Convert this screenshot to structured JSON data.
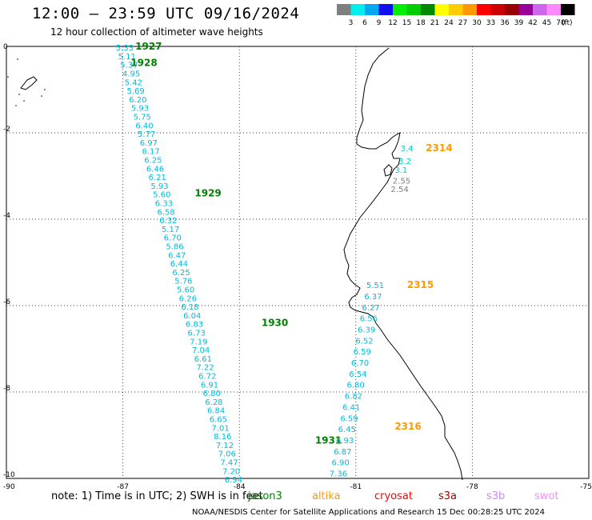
{
  "header": {
    "title": "12:00 — 23:59 UTC 09/16/2024",
    "subtitle": "12 hour collection of altimeter wave heights"
  },
  "legend": {
    "unit": "(ft)",
    "entries": [
      {
        "label": "3",
        "color": "#7f7f7f"
      },
      {
        "label": "6",
        "color": "#00eeee"
      },
      {
        "label": "9",
        "color": "#00a8f0"
      },
      {
        "label": "12",
        "color": "#1010ee"
      },
      {
        "label": "15",
        "color": "#00ee00"
      },
      {
        "label": "18",
        "color": "#00cc00"
      },
      {
        "label": "21",
        "color": "#008800"
      },
      {
        "label": "24",
        "color": "#ffff00"
      },
      {
        "label": "27",
        "color": "#ffcc00"
      },
      {
        "label": "30",
        "color": "#ff9900"
      },
      {
        "label": "33",
        "color": "#ff0000"
      },
      {
        "label": "36",
        "color": "#cc0000"
      },
      {
        "label": "39",
        "color": "#990000"
      },
      {
        "label": "42",
        "color": "#990099"
      },
      {
        "label": "45",
        "color": "#cc66ee"
      },
      {
        "label": "70",
        "color": "#ff88ff"
      },
      {
        "label": "",
        "color": "#000000"
      }
    ]
  },
  "map": {
    "lon_ticks": [
      -90,
      -87,
      -84,
      -81,
      -78,
      -75
    ],
    "lon_labels": [
      "-90",
      "-87",
      "-84",
      "-81",
      "-78",
      "-75"
    ],
    "lat_ticks": [
      0,
      -2,
      -4,
      -6,
      -8,
      -10
    ],
    "lat_labels": [
      "0",
      "-2",
      "-4",
      "-6",
      "-8",
      "-10"
    ],
    "lon_range": [
      -90,
      -75
    ],
    "lat_range": [
      0,
      -10
    ]
  },
  "tracks": [
    {
      "pass": "1927-1931",
      "values": [
        "5.33",
        "5.11",
        "5.37",
        "4.95",
        "5.42",
        "5.69",
        "6.20",
        "5.93",
        "5.75",
        "6.40",
        "5.77",
        "6.97",
        "6.17",
        "6.25",
        "6.46",
        "6.21",
        "5.93",
        "5.60",
        "6.33",
        "6.58",
        "6.32",
        "5.17",
        "6.70",
        "5.86",
        "6.47",
        "6.44",
        "6.25",
        "5.76",
        "5.60",
        "6.26",
        "6.18",
        "6.04",
        "6.83",
        "6.73",
        "7.19",
        "7.04",
        "6.61",
        "7.22",
        "6.72",
        "6.91",
        "6.80",
        "6.28",
        "6.84",
        "6.65",
        "7.01",
        "8.16",
        "7.12",
        "7.06",
        "7.47",
        "7.20",
        "6.94"
      ],
      "lat_start": -0.02,
      "lat_end": -10.02,
      "lon_start": -87.18,
      "lon_end": -84.38,
      "labels": [
        {
          "text": "1927",
          "color": "#008000",
          "lon": -86.68,
          "lat": 0.0
        },
        {
          "text": "1928",
          "color": "#008000",
          "lon": -86.8,
          "lat": -0.38
        },
        {
          "text": "1929",
          "color": "#008000",
          "lon": -85.15,
          "lat": -3.4
        },
        {
          "text": "1930",
          "color": "#008000",
          "lon": -83.43,
          "lat": -6.4
        },
        {
          "text": "1931",
          "color": "#008000",
          "lon": -82.05,
          "lat": -9.12
        }
      ]
    },
    {
      "pass": "2314-2316",
      "values": [
        "7.36",
        "6.90",
        "6.87",
        "6.93",
        "6.45",
        "6.59",
        "6.41",
        "6.82",
        "6.80",
        "6.54",
        "6.70",
        "6.59",
        "6.52",
        "6.39",
        "6.56",
        "6.27",
        "6.37",
        "5.51"
      ],
      "lat_start": -9.88,
      "lat_end": -5.52,
      "lon_start": -81.68,
      "lon_end": -80.73,
      "labels": [
        {
          "text": "2316",
          "color": "#ff9900",
          "lon": -80.0,
          "lat": -8.8
        },
        {
          "text": "2315",
          "color": "#ff9900",
          "lon": -79.68,
          "lat": -5.52
        }
      ]
    },
    {
      "pass": "2314",
      "values": [
        "2.54",
        "2.55",
        "3.1",
        "3.2",
        "3.4"
      ],
      "colors": [
        "#7f7f7f",
        "#7f7f7f",
        "#00cccc",
        "#00cccc",
        "#00cccc"
      ],
      "points": [
        [
          -80.1,
          -3.3
        ],
        [
          -80.05,
          -3.1
        ],
        [
          -80.0,
          -2.85
        ],
        [
          -79.9,
          -2.65
        ],
        [
          -79.85,
          -2.35
        ]
      ],
      "labels": [
        {
          "text": "2314",
          "color": "#ff9900",
          "lon": -79.2,
          "lat": -2.35
        }
      ]
    }
  ],
  "missions": [
    {
      "name": "jason3",
      "color": "#008000"
    },
    {
      "name": "altika",
      "color": "#ff9900"
    },
    {
      "name": "cryosat",
      "color": "#ff0000"
    },
    {
      "name": "s3a",
      "color": "#990000"
    },
    {
      "name": "s3b",
      "color": "#cc88ee"
    },
    {
      "name": "swot",
      "color": "#ff88ff"
    }
  ],
  "footer": {
    "note": "note:  1) Time is in UTC; 2) SWH is in feet",
    "credit": "NOAA/NESDIS Center for Satellite Applications and Research    15 Dec 00:28:25 UTC 2024"
  }
}
